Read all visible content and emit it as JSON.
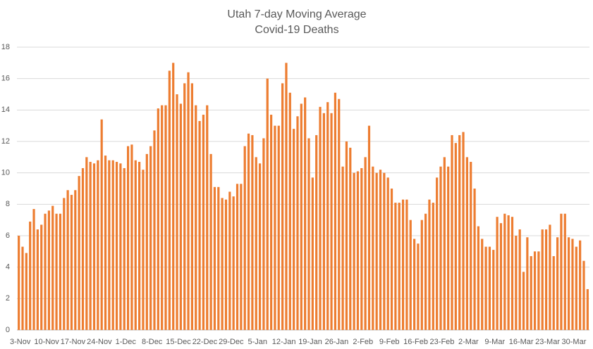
{
  "chart_data": {
    "type": "bar",
    "title": "Utah 7-day Moving Average",
    "subtitle": "Covid-19 Deaths",
    "color": "#ed7d31",
    "grid": true,
    "ylim": [
      0,
      18
    ],
    "yticks": [
      0,
      2,
      4,
      6,
      8,
      10,
      12,
      14,
      16,
      18
    ],
    "categories": [
      "3-Nov",
      null,
      null,
      null,
      null,
      null,
      null,
      "10-Nov",
      null,
      null,
      null,
      null,
      null,
      null,
      "17-Nov",
      null,
      null,
      null,
      null,
      null,
      null,
      "24-Nov",
      null,
      null,
      null,
      null,
      null,
      null,
      "1-Dec",
      null,
      null,
      null,
      null,
      null,
      null,
      "8-Dec",
      null,
      null,
      null,
      null,
      null,
      null,
      "15-Dec",
      null,
      null,
      null,
      null,
      null,
      null,
      "22-Dec",
      null,
      null,
      null,
      null,
      null,
      null,
      "29-Dec",
      null,
      null,
      null,
      null,
      null,
      null,
      "5-Jan",
      null,
      null,
      null,
      null,
      null,
      null,
      "12-Jan",
      null,
      null,
      null,
      null,
      null,
      null,
      "19-Jan",
      null,
      null,
      null,
      null,
      null,
      null,
      "26-Jan",
      null,
      null,
      null,
      null,
      null,
      null,
      "2-Feb",
      null,
      null,
      null,
      null,
      null,
      null,
      "9-Feb",
      null,
      null,
      null,
      null,
      null,
      null,
      "16-Feb",
      null,
      null,
      null,
      null,
      null,
      null,
      "23-Feb",
      null,
      null,
      null,
      null,
      null,
      null,
      "2-Mar",
      null,
      null,
      null,
      null,
      null,
      null,
      "9-Mar",
      null,
      null,
      null,
      null,
      null,
      null,
      "16-Mar",
      null,
      null,
      null,
      null,
      null,
      null,
      "23-Mar",
      null,
      null,
      null,
      null,
      null,
      null,
      "30-Mar",
      null,
      null,
      null,
      null
    ],
    "values": [
      6.0,
      5.3,
      4.9,
      6.9,
      7.7,
      6.4,
      6.7,
      7.4,
      7.6,
      7.9,
      7.4,
      7.4,
      8.4,
      8.9,
      8.6,
      8.9,
      9.8,
      10.3,
      11.0,
      10.7,
      10.6,
      10.8,
      13.4,
      11.1,
      10.8,
      10.8,
      10.7,
      10.6,
      10.3,
      11.7,
      11.8,
      10.8,
      10.7,
      10.2,
      11.2,
      11.7,
      12.7,
      14.1,
      14.3,
      14.3,
      16.5,
      17.0,
      15.0,
      14.4,
      15.7,
      16.4,
      15.7,
      14.3,
      13.3,
      13.7,
      14.3,
      11.2,
      9.1,
      9.1,
      8.4,
      8.3,
      8.8,
      8.5,
      9.3,
      9.3,
      11.7,
      12.5,
      12.4,
      11.0,
      10.6,
      12.2,
      16.0,
      13.7,
      13.0,
      13.0,
      15.7,
      17.0,
      15.1,
      12.8,
      13.6,
      14.4,
      14.8,
      12.2,
      9.7,
      12.4,
      14.2,
      13.8,
      14.5,
      13.8,
      15.1,
      14.7,
      10.4,
      12.0,
      11.6,
      10.0,
      10.1,
      10.3,
      11.0,
      13.0,
      10.4,
      10.0,
      10.2,
      10.0,
      9.7,
      9.0,
      8.1,
      8.1,
      8.3,
      8.3,
      7.0,
      5.8,
      5.5,
      7.0,
      7.4,
      8.3,
      8.1,
      9.7,
      10.4,
      11.0,
      10.4,
      12.4,
      11.9,
      12.4,
      12.6,
      11.0,
      10.7,
      9.0,
      6.6,
      5.8,
      5.3,
      5.3,
      5.1,
      7.2,
      6.8,
      7.4,
      7.3,
      7.2,
      6.0,
      6.4,
      3.7,
      5.9,
      4.7,
      5.0,
      5.0,
      6.4,
      6.4,
      6.7,
      4.7,
      5.9,
      7.4,
      7.4,
      5.9,
      5.8,
      5.3,
      5.7,
      4.4,
      2.6
    ]
  }
}
